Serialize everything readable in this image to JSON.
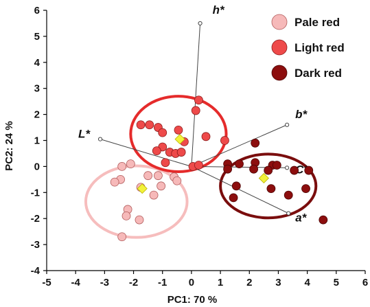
{
  "chart_data": {
    "type": "scatter",
    "title": "",
    "xlabel": "PC1: 70 %",
    "ylabel": "PC2: 24 %",
    "xlim": [
      -5,
      6
    ],
    "ylim": [
      -4,
      6
    ],
    "xticks": [
      "-5",
      "-4",
      "-3",
      "-2",
      "-1",
      "0",
      "1",
      "2",
      "3",
      "4",
      "5",
      "6"
    ],
    "yticks": [
      "-4",
      "-3",
      "-2",
      "-1",
      "0",
      "1",
      "2",
      "3",
      "4",
      "5",
      "6"
    ],
    "legend_position": "top-right",
    "series": [
      {
        "name": "Pale red",
        "color": "#f6b9b9",
        "stroke": "#b05a5a",
        "centroid": [
          -1.7,
          -0.85
        ],
        "ellipse": {
          "cx": -1.9,
          "cy": -1.35,
          "rx": 3.5,
          "ry": 2.75
        },
        "ellipse_color": "#f6bdbd",
        "points": [
          [
            -2.1,
            0.1
          ],
          [
            -2.4,
            0.0
          ],
          [
            -1.5,
            -0.35
          ],
          [
            -1.15,
            -0.35
          ],
          [
            -0.6,
            -0.4
          ],
          [
            -0.5,
            -0.55
          ],
          [
            -2.45,
            -0.5
          ],
          [
            -2.65,
            -0.6
          ],
          [
            -1.75,
            -0.8
          ],
          [
            -1.05,
            -0.75
          ],
          [
            -1.3,
            -1.1
          ],
          [
            -2.2,
            -1.65
          ],
          [
            -2.25,
            -1.9
          ],
          [
            -1.8,
            -2.05
          ],
          [
            -2.4,
            -2.7
          ]
        ]
      },
      {
        "name": "Light red",
        "color": "#ee4a4a",
        "stroke": "#8a1a1a",
        "centroid": [
          -0.4,
          1.05
        ],
        "ellipse": {
          "cx": -0.45,
          "cy": 1.25,
          "rx": 3.3,
          "ry": 2.9
        },
        "ellipse_color": "#e52b2b",
        "points": [
          [
            0.25,
            2.55
          ],
          [
            0.15,
            2.15
          ],
          [
            -1.45,
            1.6
          ],
          [
            -1.15,
            1.5
          ],
          [
            -0.45,
            1.4
          ],
          [
            -1.75,
            1.6
          ],
          [
            -1.0,
            1.3
          ],
          [
            -1.0,
            0.75
          ],
          [
            -0.75,
            0.55
          ],
          [
            -0.55,
            0.5
          ],
          [
            -1.2,
            0.6
          ],
          [
            -0.25,
            0.95
          ],
          [
            0.5,
            1.15
          ],
          [
            1.15,
            1.0
          ],
          [
            -0.35,
            0.55
          ],
          [
            -0.9,
            0.15
          ],
          [
            0.05,
            0.0
          ],
          [
            0.25,
            0.05
          ]
        ]
      },
      {
        "name": "Dark red",
        "color": "#8c0e0e",
        "stroke": "#4a0505",
        "centroid": [
          2.5,
          -0.45
        ],
        "ellipse": {
          "cx": 2.65,
          "cy": -0.75,
          "rx": 3.3,
          "ry": 2.45
        },
        "ellipse_color": "#7a0d0d",
        "points": [
          [
            2.2,
            0.9
          ],
          [
            1.25,
            0.1
          ],
          [
            1.65,
            0.1
          ],
          [
            2.2,
            0.15
          ],
          [
            2.8,
            0.05
          ],
          [
            2.95,
            0.05
          ],
          [
            1.25,
            -0.1
          ],
          [
            2.15,
            -0.1
          ],
          [
            2.65,
            -0.15
          ],
          [
            3.55,
            -0.15
          ],
          [
            4.05,
            -0.15
          ],
          [
            1.55,
            -0.75
          ],
          [
            2.75,
            -0.85
          ],
          [
            3.95,
            -0.85
          ],
          [
            1.45,
            -1.2
          ],
          [
            3.35,
            -1.1
          ],
          [
            4.55,
            -2.05
          ]
        ]
      }
    ],
    "centroid_color": "#f2f23b",
    "vectors": [
      {
        "label": "h*",
        "x": 0.3,
        "y": 5.5
      },
      {
        "label": "b*",
        "x": 3.3,
        "y": 1.6
      },
      {
        "label": "C*",
        "x": 3.3,
        "y": -0.05
      },
      {
        "label": "a*",
        "x": 3.35,
        "y": -1.8
      },
      {
        "label": "L*",
        "x": -3.15,
        "y": 1.05
      }
    ]
  }
}
